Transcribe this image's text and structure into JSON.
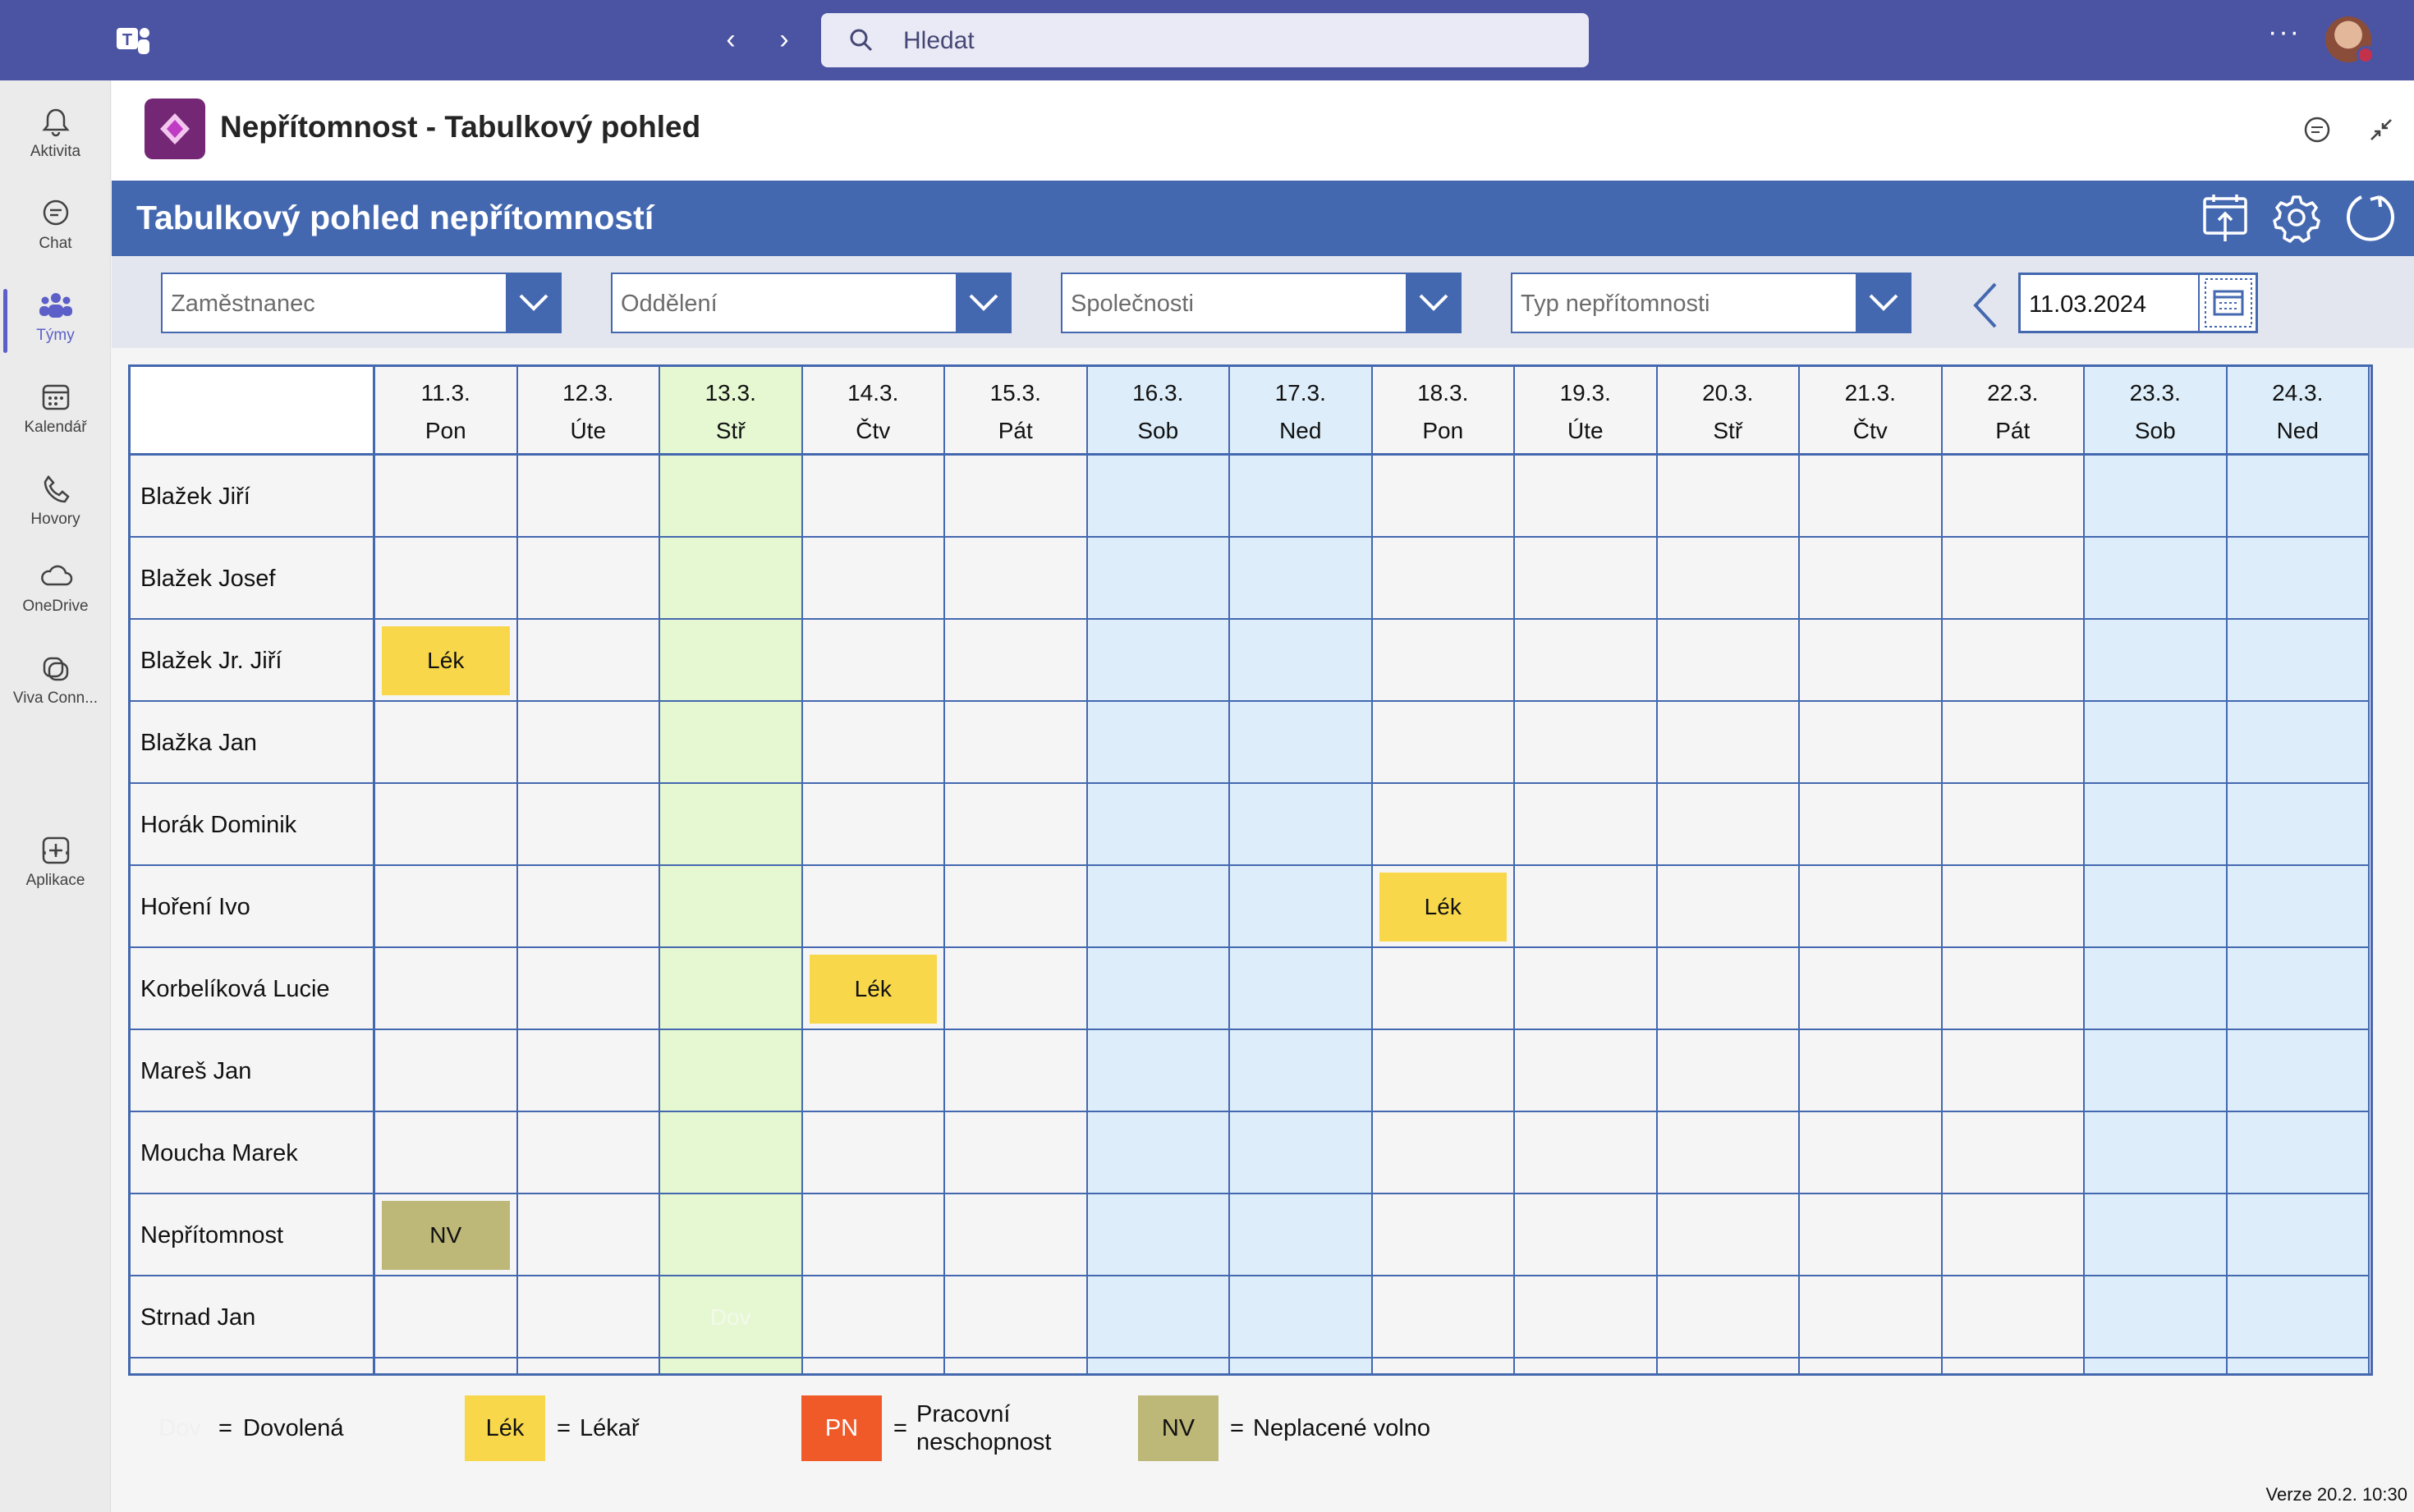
{
  "teams": {
    "search_placeholder": "Hledat",
    "rail": [
      {
        "label": "Aktivita",
        "icon": "bell-icon"
      },
      {
        "label": "Chat",
        "icon": "chat-icon"
      },
      {
        "label": "Týmy",
        "icon": "teams-icon",
        "active": true
      },
      {
        "label": "Kalendář",
        "icon": "calendar-icon"
      },
      {
        "label": "Hovory",
        "icon": "phone-icon"
      },
      {
        "label": "OneDrive",
        "icon": "cloud-icon"
      },
      {
        "label": "Viva Conn...",
        "icon": "viva-connections-icon"
      },
      {
        "label": "Aplikace",
        "icon": "add-app-icon"
      }
    ]
  },
  "app": {
    "title": "Nepřítomnost - Tabulkový pohled",
    "banner_title": "Tabulkový pohled nepřítomností"
  },
  "filters": {
    "employee": "Zaměstnanec",
    "department": "Oddělení",
    "companies": "Společnosti",
    "absence_type": "Typ nepřítomnosti",
    "date": "11.03.2024"
  },
  "days": [
    {
      "date": "11.3.",
      "weekday": "Pon",
      "kind": "work"
    },
    {
      "date": "12.3.",
      "weekday": "Úte",
      "kind": "work"
    },
    {
      "date": "13.3.",
      "weekday": "Stř",
      "kind": "today"
    },
    {
      "date": "14.3.",
      "weekday": "Čtv",
      "kind": "work"
    },
    {
      "date": "15.3.",
      "weekday": "Pát",
      "kind": "work"
    },
    {
      "date": "16.3.",
      "weekday": "Sob",
      "kind": "weekend"
    },
    {
      "date": "17.3.",
      "weekday": "Ned",
      "kind": "weekend"
    },
    {
      "date": "18.3.",
      "weekday": "Pon",
      "kind": "work"
    },
    {
      "date": "19.3.",
      "weekday": "Úte",
      "kind": "work"
    },
    {
      "date": "20.3.",
      "weekday": "Stř",
      "kind": "work"
    },
    {
      "date": "21.3.",
      "weekday": "Čtv",
      "kind": "work"
    },
    {
      "date": "22.3.",
      "weekday": "Pát",
      "kind": "work"
    },
    {
      "date": "23.3.",
      "weekday": "Sob",
      "kind": "weekend"
    },
    {
      "date": "24.3.",
      "weekday": "Ned",
      "kind": "weekend"
    }
  ],
  "employees": [
    {
      "name": "Blažek Jiří",
      "absences": []
    },
    {
      "name": "Blažek Josef",
      "absences": []
    },
    {
      "name": "Blažek Jr. Jiří",
      "absences": [
        {
          "day": 0,
          "code": "Lék"
        }
      ]
    },
    {
      "name": "Blažka Jan",
      "absences": []
    },
    {
      "name": "Horák Dominik",
      "absences": []
    },
    {
      "name": "Hoření Ivo",
      "absences": [
        {
          "day": 7,
          "code": "Lék"
        }
      ]
    },
    {
      "name": "Korbelíková Lucie",
      "absences": [
        {
          "day": 3,
          "code": "Lék"
        }
      ]
    },
    {
      "name": "Mareš Jan",
      "absences": []
    },
    {
      "name": "Moucha Marek",
      "absences": []
    },
    {
      "name": "Nepřítomnost",
      "absences": [
        {
          "day": 0,
          "code": "NV"
        }
      ]
    },
    {
      "name": "Strnad Jan",
      "absences": [
        {
          "day": 2,
          "code": "Dov"
        }
      ]
    }
  ],
  "legend": [
    {
      "code": "Dov",
      "label": "Dovolená",
      "color": "#f5f5f5",
      "text_color": "#f0f0f0"
    },
    {
      "code": "Lék",
      "label": "Lékař",
      "color": "#f8d84a",
      "text_color": "#111111"
    },
    {
      "code": "PN",
      "label": "Pracovní neschopnost",
      "color": "#f05a28",
      "text_color": "#ffffff"
    },
    {
      "code": "NV",
      "label": "Neplacené volno",
      "color": "#bdb778",
      "text_color": "#111111"
    }
  ],
  "colors": {
    "today": "#e6f8d2",
    "weekend": "#ddeefa",
    "work": "#f5f5f5",
    "dov_cell_text": "#f2f9ea"
  },
  "version": "Verze 20.2. 10:30"
}
